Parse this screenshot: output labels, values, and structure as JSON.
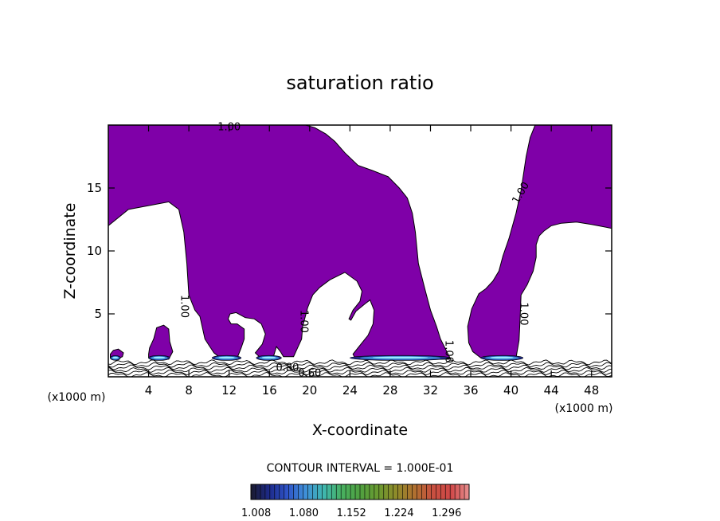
{
  "chart_data": {
    "type": "contour",
    "title": "saturation ratio",
    "xlabel": "X-coordinate",
    "ylabel": "Z-coordinate",
    "x_unit": "(x1000 m)",
    "y_unit": "(x1000 m)",
    "xlim": [
      0,
      50
    ],
    "ylim": [
      0,
      20
    ],
    "x_ticks": [
      4,
      8,
      12,
      16,
      20,
      24,
      28,
      32,
      36,
      40,
      44,
      48
    ],
    "y_ticks": [
      5,
      10,
      15
    ],
    "contour_interval_label": "CONTOUR INTERVAL = 1.000E-01",
    "contour_labels": [
      {
        "text": "1.00",
        "x": 12.0,
        "z": 19.8,
        "angle": 0
      },
      {
        "text": "1.00",
        "x": 41.0,
        "z": 14.6,
        "angle": -60
      },
      {
        "text": "1.00",
        "x": 7.5,
        "z": 5.6,
        "angle": 90
      },
      {
        "text": "1.00",
        "x": 19.4,
        "z": 4.4,
        "angle": 90
      },
      {
        "text": "1.00",
        "x": 41.2,
        "z": 5.0,
        "angle": 90
      },
      {
        "text": "1.00",
        "x": 33.8,
        "z": 2.0,
        "angle": 90
      },
      {
        "text": "0.80",
        "x": 17.8,
        "z": 0.7,
        "angle": 0
      },
      {
        "text": "0.60",
        "x": 20.0,
        "z": 0.25,
        "angle": 0
      }
    ],
    "fill_region_color": "#7f00a8",
    "colorbar": {
      "labels": [
        "1.008",
        "1.080",
        "1.152",
        "1.224",
        "1.296"
      ],
      "min": 1.0,
      "max": 1.33,
      "colors": [
        "#1a1a2e",
        "#1d2a8a",
        "#2f54c8",
        "#3f8fd8",
        "#3fb7b0",
        "#48b060",
        "#4fa040",
        "#6a9a30",
        "#8f8a2a",
        "#b07030",
        "#c85040",
        "#d04848",
        "#e89090"
      ]
    },
    "regions": {
      "saturated_upper_left": [
        [
          0,
          12
        ],
        [
          2,
          13.3
        ],
        [
          6,
          13.9
        ],
        [
          7,
          13.3
        ],
        [
          7.5,
          11.5
        ],
        [
          7.8,
          9
        ],
        [
          8,
          6.5
        ],
        [
          8.6,
          5.3
        ],
        [
          9.1,
          4.8
        ],
        [
          9.6,
          3
        ],
        [
          10,
          2.5
        ],
        [
          10.5,
          1.9
        ],
        [
          11,
          1.6
        ],
        [
          12.8,
          1.5
        ],
        [
          13.2,
          2.3
        ],
        [
          13.5,
          3
        ],
        [
          13.5,
          3.8
        ],
        [
          12.8,
          4.2
        ],
        [
          12.2,
          4.2
        ],
        [
          11.9,
          4.6
        ],
        [
          12.1,
          5
        ],
        [
          12.7,
          5.1
        ],
        [
          13.6,
          4.7
        ],
        [
          14.5,
          4.6
        ],
        [
          15.2,
          4.2
        ],
        [
          15.6,
          3.4
        ],
        [
          15.3,
          2.6
        ],
        [
          14.6,
          1.9
        ],
        [
          15,
          1.6
        ],
        [
          16.4,
          1.6
        ],
        [
          16.7,
          2.4
        ],
        [
          17.1,
          2
        ],
        [
          17.4,
          1.6
        ],
        [
          18.4,
          1.6
        ],
        [
          18.8,
          2.3
        ],
        [
          19.2,
          3
        ],
        [
          19.3,
          4
        ],
        [
          19.8,
          5.5
        ],
        [
          20.3,
          6.5
        ],
        [
          21,
          7.1
        ],
        [
          22,
          7.7
        ],
        [
          23.5,
          8.3
        ],
        [
          24.7,
          7.6
        ],
        [
          25.2,
          6.8
        ],
        [
          25,
          6
        ],
        [
          24.3,
          5.3
        ],
        [
          23.9,
          4.6
        ],
        [
          24.1,
          4.5
        ],
        [
          24.6,
          5.2
        ],
        [
          25.5,
          5.8
        ],
        [
          26,
          6.1
        ],
        [
          26.4,
          5.3
        ],
        [
          26.3,
          4.2
        ],
        [
          25.8,
          3.3
        ],
        [
          25,
          2.5
        ],
        [
          24.3,
          1.8
        ],
        [
          24.5,
          1.5
        ],
        [
          30,
          1.5
        ],
        [
          33,
          1.4
        ],
        [
          34,
          1.4
        ],
        [
          33.5,
          2.2
        ],
        [
          33,
          3
        ],
        [
          32.6,
          4
        ],
        [
          32,
          5.3
        ],
        [
          31.5,
          6.8
        ],
        [
          30.8,
          9
        ],
        [
          30.5,
          11.5
        ],
        [
          30.2,
          13
        ],
        [
          29.7,
          14.2
        ],
        [
          28.9,
          15
        ],
        [
          27.8,
          15.9
        ],
        [
          26.2,
          16.4
        ],
        [
          24.8,
          16.8
        ],
        [
          23.5,
          17.8
        ],
        [
          22.5,
          18.7
        ],
        [
          21.6,
          19.3
        ],
        [
          20.5,
          19.8
        ],
        [
          19.6,
          20
        ],
        [
          0,
          20
        ]
      ],
      "saturated_upper_right": [
        [
          42.4,
          20
        ],
        [
          50,
          20
        ],
        [
          50,
          11.8
        ],
        [
          48,
          12.1
        ],
        [
          46.5,
          12.3
        ],
        [
          45,
          12.2
        ],
        [
          44,
          12
        ],
        [
          43.3,
          11.6
        ],
        [
          42.8,
          11.2
        ],
        [
          42.5,
          10.5
        ],
        [
          42.5,
          9.5
        ],
        [
          42.2,
          8.4
        ],
        [
          41.6,
          7.3
        ],
        [
          41,
          6.5
        ],
        [
          40.9,
          4.6
        ],
        [
          40.8,
          2.9
        ],
        [
          40.5,
          1.5
        ],
        [
          37,
          1.5
        ],
        [
          36.2,
          2
        ],
        [
          35.8,
          2.7
        ],
        [
          35.7,
          4
        ],
        [
          36.1,
          5.4
        ],
        [
          36.8,
          6.6
        ],
        [
          37.5,
          7
        ],
        [
          38.2,
          7.6
        ],
        [
          38.8,
          8.4
        ],
        [
          39.2,
          9.6
        ],
        [
          39.8,
          11
        ],
        [
          40.5,
          13
        ],
        [
          41,
          14.8
        ],
        [
          41.5,
          17.5
        ],
        [
          41.9,
          19
        ],
        [
          42.4,
          20
        ]
      ],
      "saturated_blobs": [
        [
          [
            0.2,
            1.5
          ],
          [
            0.8,
            1.4
          ],
          [
            1.4,
            1.6
          ],
          [
            1.5,
            1.9
          ],
          [
            1,
            2.2
          ],
          [
            0.5,
            2.1
          ],
          [
            0.2,
            1.8
          ]
        ],
        [
          [
            4,
            1.5
          ],
          [
            6,
            1.4
          ],
          [
            6.4,
            2
          ],
          [
            6.1,
            2.8
          ],
          [
            6,
            3.8
          ],
          [
            5.5,
            4.1
          ],
          [
            4.8,
            3.9
          ],
          [
            4.5,
            3
          ],
          [
            4.1,
            2.3
          ],
          [
            4,
            1.8
          ]
        ]
      ],
      "bright_cores": [
        [
          [
            0.2,
            1.35
          ],
          [
            1.2,
            1.35
          ],
          [
            1.3,
            1.65
          ],
          [
            0.3,
            1.65
          ]
        ],
        [
          [
            4,
            1.3
          ],
          [
            6.1,
            1.3
          ],
          [
            6.1,
            1.7
          ],
          [
            4,
            1.7
          ]
        ],
        [
          [
            10.3,
            1.3
          ],
          [
            13.2,
            1.3
          ],
          [
            13.2,
            1.7
          ],
          [
            10.3,
            1.7
          ]
        ],
        [
          [
            14.7,
            1.3
          ],
          [
            17.2,
            1.3
          ],
          [
            17.2,
            1.7
          ],
          [
            14.7,
            1.7
          ]
        ],
        [
          [
            24,
            1.3
          ],
          [
            34,
            1.3
          ],
          [
            34,
            1.7
          ],
          [
            24,
            1.7
          ]
        ],
        [
          [
            37,
            1.3
          ],
          [
            41.2,
            1.3
          ],
          [
            41.2,
            1.7
          ],
          [
            37,
            1.7
          ]
        ]
      ]
    }
  }
}
